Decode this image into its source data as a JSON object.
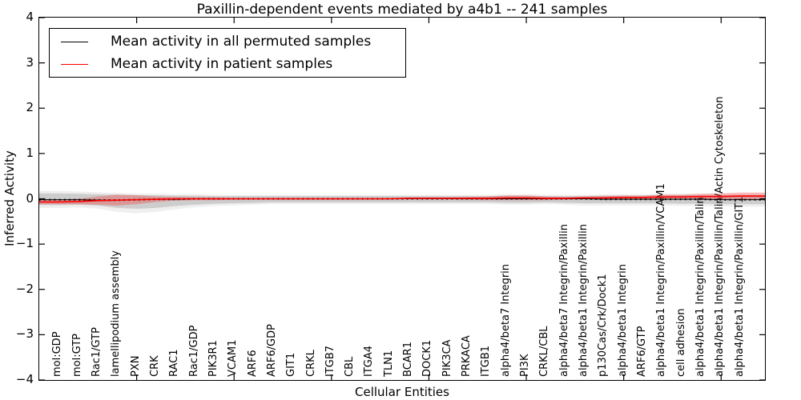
{
  "title": "Paxillin-dependent events mediated by a4b1 -- 241 samples",
  "axes": {
    "ylabel": "Inferred Activity",
    "xlabel": "Cellular Entities",
    "ytick_labels": [
      "4",
      "3",
      "2",
      "1",
      "0",
      "−1",
      "−2",
      "−3",
      "−4"
    ]
  },
  "legend": {
    "items": [
      {
        "label": "Mean activity in all permuted samples",
        "color": "#000000"
      },
      {
        "label": "Mean activity in patient samples",
        "color": "#ff0000"
      }
    ]
  },
  "chart_data": {
    "type": "line",
    "title": "Paxillin-dependent events mediated by a4b1 -- 241 samples",
    "xlabel": "Cellular Entities",
    "ylabel": "Inferred Activity",
    "ylim": [
      -4,
      4
    ],
    "xlim": [
      0,
      37.25
    ],
    "yticks": [
      -4,
      -3,
      -2,
      -1,
      0,
      1,
      2,
      3,
      4
    ],
    "xticks": [
      5,
      10,
      15,
      20,
      25,
      30,
      35
    ],
    "grid": false,
    "legend_position": "upper left",
    "x_start": 1,
    "categories": [
      "mol:GDP",
      "mol:GTP",
      "Rac1/GTP",
      "lamellipodium assembly",
      "PXN",
      "CRK",
      "RAC1",
      "Rac1/GDP",
      "PIK3R1",
      "VCAM1",
      "ARF6",
      "ARF6/GDP",
      "GIT1",
      "CRKL",
      "ITGB7",
      "CBL",
      "ITGA4",
      "TLN1",
      "BCAR1",
      "DOCK1",
      "PIK3CA",
      "PRKACA",
      "ITGB1",
      "alpha4/beta7 Integrin",
      "PI3K",
      "CRKL/CBL",
      "alpha4/beta7 Integrin/Paxillin",
      "alpha4/beta1 Integrin/Paxillin",
      "p130Cas/Crk/Dock1",
      "alpha4/beta1 Integrin",
      "ARF6/GTP",
      "alpha4/beta1 Integrin/Paxillin/VCAM1",
      "cell adhesion",
      "alpha4/beta1 Integrin/Paxillin/Talin",
      "alpha4/beta1 Integrin/Paxillin/Talin/Actin Cytoskeleton",
      "alpha4/beta1 Integrin/Paxillin/GIT1"
    ],
    "series": [
      {
        "name": "Mean activity in all permuted samples",
        "color": "#000000",
        "style": "solid-with-dots",
        "values": [
          -0.02,
          -0.02,
          -0.03,
          -0.03,
          -0.02,
          -0.01,
          -0.01,
          0.0,
          0.0,
          0.0,
          0.0,
          0.0,
          0.0,
          0.0,
          0.0,
          0.0,
          0.0,
          0.0,
          0.0,
          0.0,
          0.0,
          0.0,
          0.0,
          0.0,
          0.0,
          0.0,
          0.0,
          0.0,
          -0.01,
          -0.01,
          -0.01,
          -0.01,
          -0.01,
          -0.01,
          -0.02,
          -0.02
        ]
      },
      {
        "name": "Mean activity in patient samples",
        "color": "#ff0000",
        "style": "solid",
        "values": [
          -0.07,
          -0.06,
          -0.04,
          -0.03,
          -0.02,
          -0.01,
          0.0,
          0.0,
          0.0,
          0.0,
          0.0,
          0.0,
          0.0,
          0.0,
          0.0,
          0.0,
          0.0,
          0.0,
          0.01,
          0.01,
          0.01,
          0.01,
          0.01,
          0.02,
          0.02,
          0.01,
          0.01,
          0.02,
          0.02,
          0.03,
          0.03,
          0.04,
          0.04,
          0.05,
          0.05,
          0.06
        ]
      }
    ],
    "bands": [
      {
        "name": "permuted-samples-range",
        "color": "#000000",
        "opacity": 0.14,
        "upper": [
          0.12,
          0.11,
          0.1,
          0.09,
          0.08,
          0.08,
          0.07,
          0.07,
          0.06,
          0.06,
          0.06,
          0.06,
          0.06,
          0.06,
          0.06,
          0.06,
          0.06,
          0.06,
          0.06,
          0.06,
          0.06,
          0.06,
          0.06,
          0.07,
          0.07,
          0.06,
          0.06,
          0.06,
          0.07,
          0.07,
          0.07,
          0.08,
          0.08,
          0.08,
          0.08,
          0.08
        ],
        "lower": [
          -0.14,
          -0.13,
          -0.15,
          -0.2,
          -0.22,
          -0.2,
          -0.16,
          -0.13,
          -0.11,
          -0.1,
          -0.09,
          -0.08,
          -0.08,
          -0.08,
          -0.08,
          -0.08,
          -0.08,
          -0.08,
          -0.08,
          -0.08,
          -0.08,
          -0.08,
          -0.08,
          -0.09,
          -0.09,
          -0.08,
          -0.09,
          -0.1,
          -0.1,
          -0.1,
          -0.1,
          -0.1,
          -0.11,
          -0.11,
          -0.12,
          -0.12
        ]
      },
      {
        "name": "patient-samples-range",
        "color": "#ff0000",
        "opacity": 0.25,
        "halfwidth": [
          0.05,
          0.06,
          0.09,
          0.12,
          0.1,
          0.06,
          0.04,
          0.03,
          0.03,
          0.02,
          0.02,
          0.02,
          0.02,
          0.02,
          0.02,
          0.02,
          0.02,
          0.02,
          0.02,
          0.02,
          0.02,
          0.03,
          0.04,
          0.05,
          0.05,
          0.04,
          0.03,
          0.03,
          0.04,
          0.04,
          0.04,
          0.05,
          0.05,
          0.06,
          0.07,
          0.08
        ]
      }
    ]
  }
}
